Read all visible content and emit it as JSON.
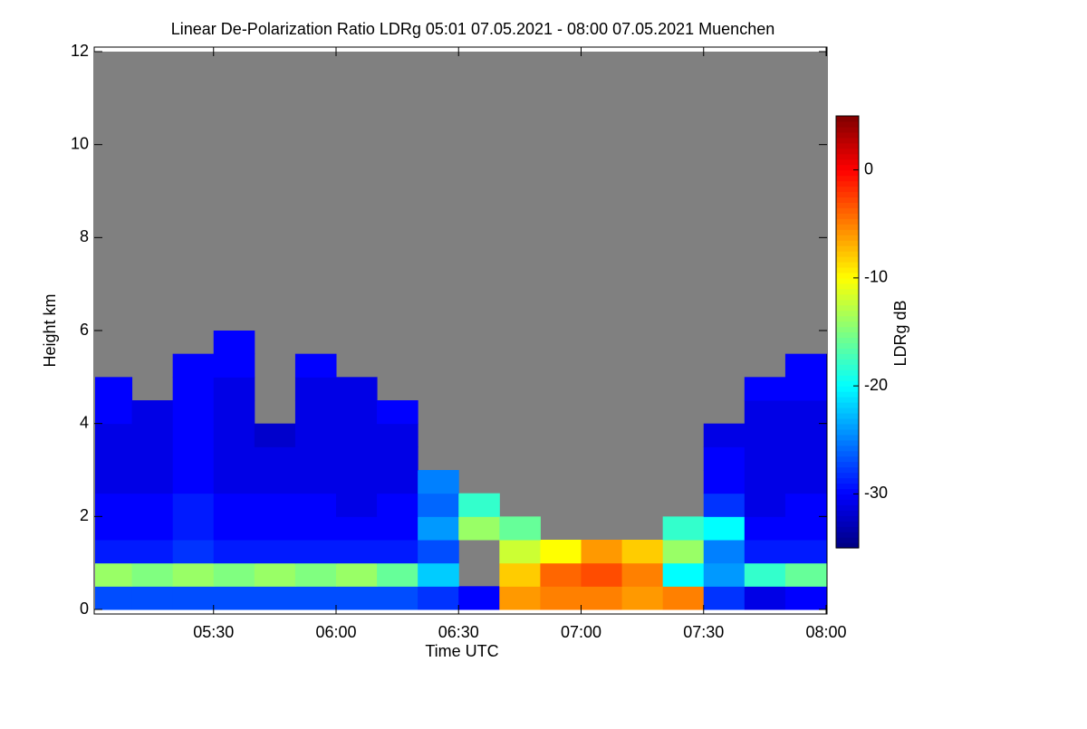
{
  "chart_data": {
    "type": "heatmap",
    "title": "Linear De-Polarization Ratio LDRg   05:01 07.05.2021 - 08:00 07.05.2021 Muenchen",
    "x_label": "Time UTC",
    "y_label": "Height km",
    "colorbar_label": "LDRg dB",
    "x": [
      301,
      310,
      320,
      330,
      340,
      350,
      360,
      370,
      380,
      390,
      400,
      410,
      420,
      430,
      440,
      450,
      460,
      470,
      480
    ],
    "y": [
      0,
      0.5,
      1,
      1.5,
      2,
      2.5,
      3,
      3.5,
      4,
      4.5,
      5,
      5.5,
      6
    ],
    "z": [
      [
        -27,
        -27,
        -27,
        -27,
        -27,
        -27,
        -27,
        -27,
        -28,
        -30,
        -6,
        -5,
        -5,
        -6,
        -5,
        -28,
        -31,
        -30
      ],
      [
        -14,
        -15,
        -14,
        -15,
        -14,
        -15,
        -14,
        -16,
        -22,
        null,
        -8,
        -4,
        -3,
        -5,
        -20,
        -24,
        -18,
        -16
      ],
      [
        -29,
        -29,
        -28,
        -29,
        -29,
        -29,
        -29,
        -29,
        -27,
        null,
        -12,
        -10,
        -6,
        -8,
        -14,
        -25,
        -29,
        -29
      ],
      [
        -30,
        -30,
        -29,
        -30,
        -30,
        -30,
        -30,
        -30,
        -24,
        -14,
        -16,
        null,
        null,
        null,
        -18,
        -20,
        -30,
        -30
      ],
      [
        -30,
        -30,
        -29,
        -30,
        -30,
        -30,
        -31,
        -30,
        -26,
        -18,
        null,
        null,
        null,
        null,
        null,
        -28,
        -31,
        -30
      ],
      [
        -31,
        -31,
        -30,
        -31,
        -31,
        -31,
        -31,
        -31,
        -25,
        null,
        null,
        null,
        null,
        null,
        null,
        -30,
        -31,
        -31
      ],
      [
        -31,
        -31,
        -30,
        -31,
        -31,
        -31,
        -31,
        -31,
        null,
        null,
        null,
        null,
        null,
        null,
        null,
        -30,
        -31,
        -31
      ],
      [
        -31,
        -31,
        -30,
        -31,
        -32,
        -31,
        -31,
        -31,
        null,
        null,
        null,
        null,
        null,
        null,
        null,
        -31,
        -31,
        -31
      ],
      [
        -30,
        -31,
        -30,
        -31,
        null,
        -31,
        -31,
        -30,
        null,
        null,
        null,
        null,
        null,
        null,
        null,
        null,
        -31,
        -31
      ],
      [
        -30,
        null,
        -30,
        -31,
        null,
        -31,
        -31,
        null,
        null,
        null,
        null,
        null,
        null,
        null,
        null,
        null,
        -30,
        -30
      ],
      [
        null,
        null,
        -30,
        -30,
        null,
        -30,
        null,
        null,
        null,
        null,
        null,
        null,
        null,
        null,
        null,
        null,
        null,
        -30
      ],
      [
        null,
        null,
        null,
        -30,
        null,
        null,
        null,
        null,
        null,
        null,
        null,
        null,
        null,
        null,
        null,
        null,
        null,
        null
      ]
    ],
    "xlim": [
      301,
      480
    ],
    "xticks": [
      {
        "value": 330,
        "label": "05:30"
      },
      {
        "value": 360,
        "label": "06:00"
      },
      {
        "value": 390,
        "label": "06:30"
      },
      {
        "value": 420,
        "label": "07:00"
      },
      {
        "value": 450,
        "label": "07:30"
      },
      {
        "value": 480,
        "label": "08:00"
      }
    ],
    "ylim": [
      0,
      12
    ],
    "yticks": [
      0,
      2,
      4,
      6,
      8,
      10,
      12
    ],
    "zlim": [
      -35,
      5
    ],
    "zticks": [
      0,
      -10,
      -20,
      -30
    ],
    "colormap": "jet",
    "no_data_color": "#808080"
  }
}
